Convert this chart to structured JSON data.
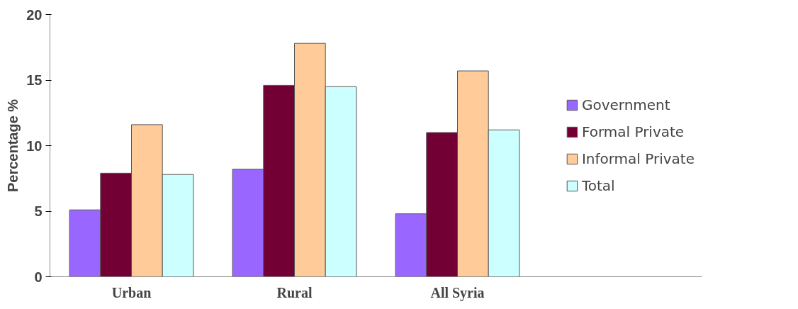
{
  "chart_data": {
    "type": "bar",
    "ylabel": "Percentage %",
    "categories": [
      "Urban",
      "Rural",
      "All Syria",
      null
    ],
    "series": [
      {
        "name": "Government",
        "color": "#9966ff",
        "values": [
          5.1,
          8.2,
          4.8,
          null
        ]
      },
      {
        "name": "Formal Private",
        "color": "#720035",
        "values": [
          7.9,
          14.6,
          11.0,
          null
        ]
      },
      {
        "name": "Informal Private",
        "color": "#ffcc99",
        "values": [
          11.6,
          17.8,
          15.7,
          null
        ]
      },
      {
        "name": "Total",
        "color": "#ccffff",
        "values": [
          7.8,
          14.5,
          11.2,
          null
        ]
      }
    ],
    "ylim": [
      0,
      20
    ],
    "yticks": [
      0,
      5,
      10,
      15,
      20
    ],
    "grid": false,
    "legend": "right"
  }
}
